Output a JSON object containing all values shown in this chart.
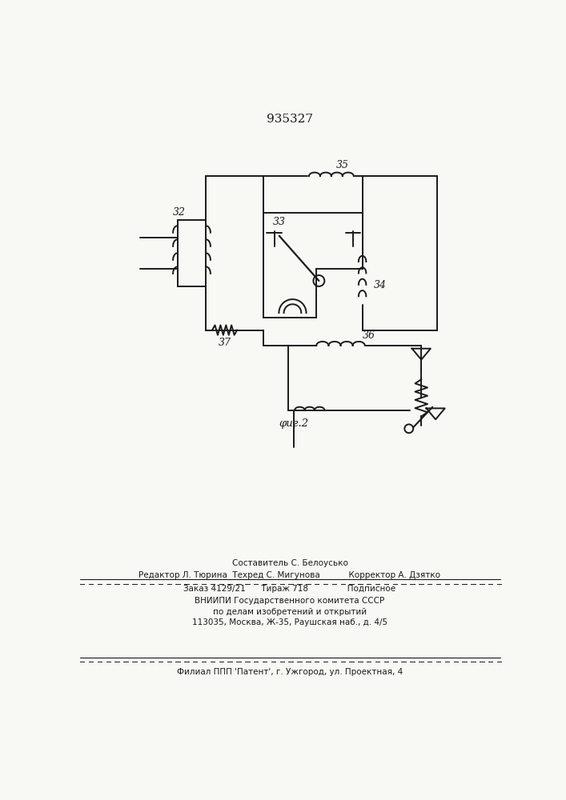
{
  "title": "935327",
  "fig_label": "φиг.2",
  "bg_color": "#f8f8f5",
  "line_color": "#1a1a1a",
  "footer_lines": [
    "Составитель С. Белоусько",
    "Редактор Л. Тюрина  Техред С. Мигунова           Корректор А. Дзятко",
    "Заказ 4129/21      Тираж 718               Подписное",
    "ВНИИПИ Государственного комитета СССР",
    "по делам изобретений и открытий",
    "113035, Москва, Ж-35, Раушская наб., д. 4/5",
    "Филиал ППП 'Патент', г. Ужгород, ул. Проектная, 4"
  ]
}
